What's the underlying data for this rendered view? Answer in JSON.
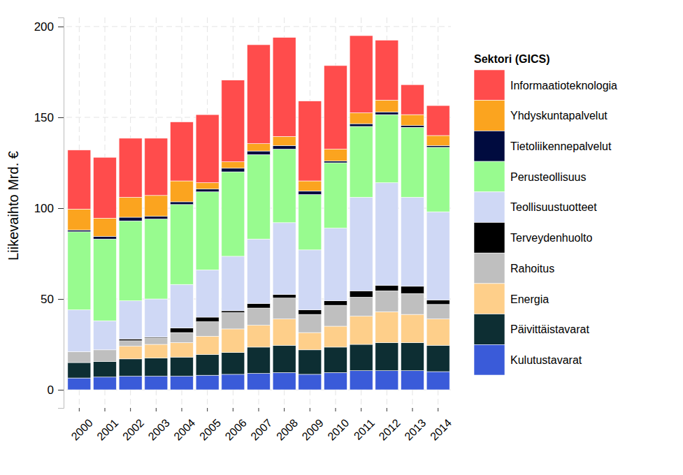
{
  "chart_data": {
    "type": "bar",
    "stacked": true,
    "grid": true,
    "legend": "right",
    "y_label": "Liikevaihto Mrd. €",
    "legend_title": "Sektori (GICS)",
    "categories": [
      "2000",
      "2001",
      "2002",
      "2003",
      "2004",
      "2005",
      "2006",
      "2007",
      "2008",
      "2009",
      "2010",
      "2011",
      "2012",
      "2013",
      "2014"
    ],
    "ylim": [
      -10,
      205
    ],
    "yticks": [
      0,
      50,
      100,
      150,
      200
    ],
    "series": [
      {
        "name": "Kulutustavarat",
        "color": "#3a5bd9",
        "values": [
          6.5,
          7,
          7.5,
          7.5,
          7.5,
          8,
          8.5,
          9,
          9.5,
          8.5,
          9.5,
          10.5,
          10.5,
          10.5,
          10
        ]
      },
      {
        "name": "Päivittäistavarat",
        "color": "#0d2e33",
        "values": [
          8.5,
          8.5,
          9.5,
          10,
          10.5,
          11.5,
          12,
          14.5,
          15,
          13.5,
          14,
          14.5,
          15.5,
          15.5,
          14.5
        ]
      },
      {
        "name": "Energia",
        "color": "#fecf8a",
        "values": [
          0,
          0,
          7,
          7.5,
          8,
          10,
          13,
          12,
          14.5,
          9.5,
          11.5,
          15.5,
          17,
          15.5,
          14.5
        ]
      },
      {
        "name": "Rahoitus",
        "color": "#bfbfbf",
        "values": [
          6,
          6.5,
          3,
          3.5,
          5.5,
          8,
          9,
          9.5,
          11.5,
          10,
          11.5,
          10.5,
          11.5,
          11.5,
          8
        ]
      },
      {
        "name": "Terveydenhuolto",
        "color": "#000000",
        "values": [
          0,
          0,
          1,
          0.5,
          2.5,
          2.5,
          1,
          2.5,
          2,
          2.5,
          2.5,
          3.5,
          3,
          4,
          2.5
        ]
      },
      {
        "name": "Teollisuustuotteet",
        "color": "#cfd8f5",
        "values": [
          23,
          16,
          21,
          21,
          24,
          26,
          30,
          35.5,
          39.5,
          33,
          40,
          51.5,
          56.5,
          49,
          48.5
        ]
      },
      {
        "name": "Perusteollisuus",
        "color": "#98fb8f",
        "values": [
          43,
          45,
          44,
          44,
          44,
          43,
          46.5,
          46.5,
          40.5,
          30.5,
          36,
          39,
          37.5,
          38.5,
          35.5
        ]
      },
      {
        "name": "Tietoliikennepalvelut",
        "color": "#000b3f",
        "values": [
          1,
          1.5,
          2,
          1.5,
          1.5,
          1.5,
          2,
          2,
          2,
          2,
          1,
          1.5,
          1.5,
          1,
          1
        ]
      },
      {
        "name": "Yhdyskuntapalvelut",
        "color": "#fba41f",
        "values": [
          11.5,
          10,
          11,
          11.5,
          11.5,
          3.5,
          3.5,
          4,
          5,
          5.5,
          6.5,
          6,
          6.5,
          6,
          5.5
        ]
      },
      {
        "name": "Informaatioteknologia",
        "color": "#ff4c4c",
        "values": [
          32.5,
          33.5,
          32.5,
          31.5,
          32.5,
          37.5,
          45,
          54.5,
          54.5,
          44,
          46,
          42.5,
          33,
          16.5,
          16.5
        ]
      }
    ]
  }
}
